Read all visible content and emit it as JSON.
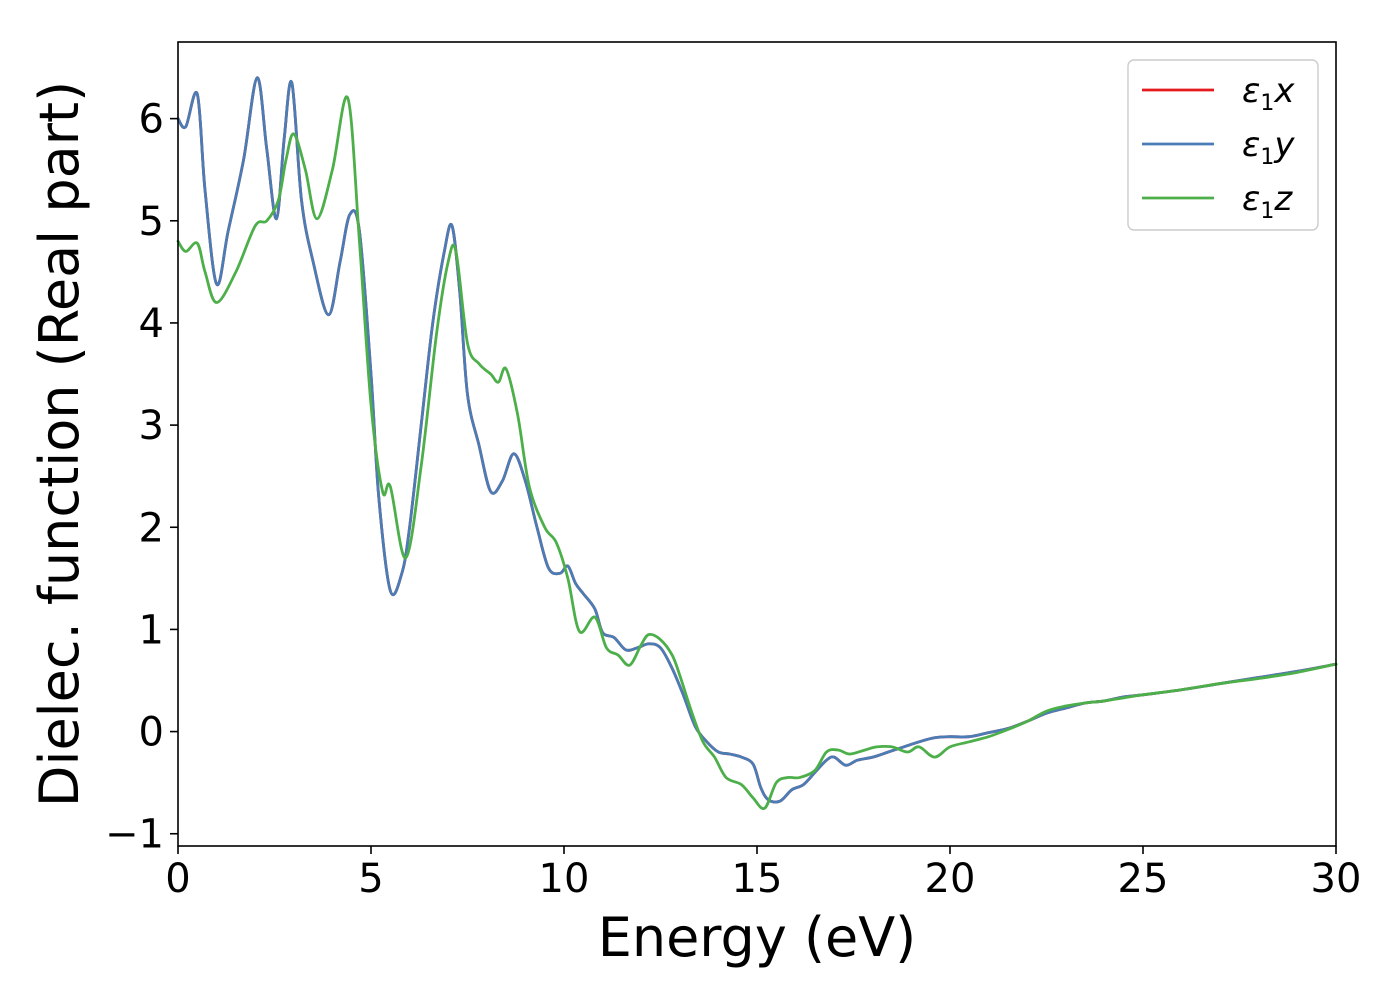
{
  "chart_data": {
    "type": "line",
    "title": "",
    "xlabel": "Energy (eV)",
    "ylabel": "Dielec. function (Real part)",
    "xlim": [
      0,
      30
    ],
    "ylim": [
      -1.12,
      6.75
    ],
    "xticks": [
      0,
      5,
      10,
      15,
      20,
      25,
      30
    ],
    "yticks": [
      -1,
      0,
      1,
      2,
      3,
      4,
      5,
      6
    ],
    "xtick_labels": [
      "0",
      "5",
      "10",
      "15",
      "20",
      "25",
      "30"
    ],
    "ytick_labels": [
      "−1",
      "0",
      "1",
      "2",
      "3",
      "4",
      "5",
      "6"
    ],
    "grid": false,
    "legend": {
      "position": "top-right",
      "entries": [
        {
          "symbol": "ε",
          "sub": "1",
          "comp": "x",
          "color": "#e41a1c"
        },
        {
          "symbol": "ε",
          "sub": "1",
          "comp": "y",
          "color": "#4a7db5"
        },
        {
          "symbol": "ε",
          "sub": "1",
          "comp": "z",
          "color": "#4daf4a"
        }
      ]
    },
    "series": [
      {
        "name": "ε1x",
        "color": "#e41a1c",
        "x": [
          0,
          0.2,
          0.5,
          0.7,
          1.0,
          1.3,
          1.7,
          2.05,
          2.3,
          2.55,
          2.75,
          2.95,
          3.2,
          3.5,
          3.9,
          4.2,
          4.45,
          4.7,
          5.0,
          5.2,
          5.5,
          5.8,
          6.0,
          6.3,
          6.6,
          6.9,
          7.1,
          7.3,
          7.5,
          7.8,
          8.1,
          8.4,
          8.7,
          9.0,
          9.3,
          9.6,
          9.9,
          10.1,
          10.3,
          10.5,
          10.8,
          11.0,
          11.3,
          11.6,
          11.9,
          12.2,
          12.5,
          12.8,
          13.1,
          13.4,
          13.7,
          14.0,
          14.3,
          14.6,
          14.9,
          15.1,
          15.3,
          15.6,
          15.9,
          16.2,
          16.5,
          16.8,
          17.0,
          17.3,
          17.6,
          18.0,
          18.4,
          18.8,
          19.2,
          19.6,
          20.0,
          20.5,
          21.0,
          21.5,
          22.0,
          22.5,
          23.0,
          23.5,
          24.0,
          24.5,
          25.0,
          26.0,
          27.0,
          28.0,
          29.0,
          30.0
        ],
        "y": [
          6.0,
          5.92,
          6.24,
          5.3,
          4.38,
          4.9,
          5.6,
          6.4,
          5.7,
          5.02,
          5.8,
          6.35,
          5.2,
          4.6,
          4.08,
          4.6,
          5.06,
          4.9,
          3.5,
          2.3,
          1.38,
          1.55,
          2.0,
          3.0,
          4.0,
          4.7,
          4.95,
          4.3,
          3.3,
          2.8,
          2.35,
          2.45,
          2.72,
          2.45,
          2.0,
          1.6,
          1.55,
          1.62,
          1.45,
          1.35,
          1.2,
          0.97,
          0.92,
          0.8,
          0.82,
          0.86,
          0.82,
          0.62,
          0.35,
          0.05,
          -0.1,
          -0.2,
          -0.22,
          -0.25,
          -0.32,
          -0.55,
          -0.67,
          -0.68,
          -0.57,
          -0.52,
          -0.4,
          -0.28,
          -0.25,
          -0.33,
          -0.28,
          -0.25,
          -0.2,
          -0.15,
          -0.1,
          -0.06,
          -0.05,
          -0.05,
          -0.01,
          0.03,
          0.1,
          0.18,
          0.23,
          0.28,
          0.3,
          0.34,
          0.36,
          0.41,
          0.47,
          0.53,
          0.59,
          0.66
        ]
      },
      {
        "name": "ε1y",
        "color": "#4a7db5",
        "x": [
          0,
          0.2,
          0.5,
          0.7,
          1.0,
          1.3,
          1.7,
          2.05,
          2.3,
          2.55,
          2.75,
          2.95,
          3.2,
          3.5,
          3.9,
          4.2,
          4.45,
          4.7,
          5.0,
          5.2,
          5.5,
          5.8,
          6.0,
          6.3,
          6.6,
          6.9,
          7.1,
          7.3,
          7.5,
          7.8,
          8.1,
          8.4,
          8.7,
          9.0,
          9.3,
          9.6,
          9.9,
          10.1,
          10.3,
          10.5,
          10.8,
          11.0,
          11.3,
          11.6,
          11.9,
          12.2,
          12.5,
          12.8,
          13.1,
          13.4,
          13.7,
          14.0,
          14.3,
          14.6,
          14.9,
          15.1,
          15.3,
          15.6,
          15.9,
          16.2,
          16.5,
          16.8,
          17.0,
          17.3,
          17.6,
          18.0,
          18.4,
          18.8,
          19.2,
          19.6,
          20.0,
          20.5,
          21.0,
          21.5,
          22.0,
          22.5,
          23.0,
          23.5,
          24.0,
          24.5,
          25.0,
          26.0,
          27.0,
          28.0,
          29.0,
          30.0
        ],
        "y": [
          6.0,
          5.92,
          6.24,
          5.3,
          4.38,
          4.9,
          5.6,
          6.4,
          5.7,
          5.02,
          5.8,
          6.35,
          5.2,
          4.6,
          4.08,
          4.6,
          5.06,
          4.9,
          3.5,
          2.3,
          1.38,
          1.55,
          2.0,
          3.0,
          4.0,
          4.7,
          4.95,
          4.3,
          3.3,
          2.8,
          2.35,
          2.45,
          2.72,
          2.45,
          2.0,
          1.6,
          1.55,
          1.62,
          1.45,
          1.35,
          1.2,
          0.97,
          0.92,
          0.8,
          0.82,
          0.86,
          0.82,
          0.62,
          0.35,
          0.05,
          -0.1,
          -0.2,
          -0.22,
          -0.25,
          -0.32,
          -0.55,
          -0.67,
          -0.68,
          -0.57,
          -0.52,
          -0.4,
          -0.28,
          -0.25,
          -0.33,
          -0.28,
          -0.25,
          -0.2,
          -0.15,
          -0.1,
          -0.06,
          -0.05,
          -0.05,
          -0.01,
          0.03,
          0.1,
          0.18,
          0.23,
          0.28,
          0.3,
          0.34,
          0.36,
          0.41,
          0.47,
          0.53,
          0.59,
          0.66
        ]
      },
      {
        "name": "ε1z",
        "color": "#4daf4a",
        "x": [
          0,
          0.2,
          0.5,
          0.7,
          1.0,
          1.5,
          2.0,
          2.3,
          2.6,
          2.8,
          3.0,
          3.3,
          3.6,
          4.0,
          4.4,
          4.7,
          5.0,
          5.3,
          5.5,
          5.9,
          6.3,
          6.7,
          7.0,
          7.2,
          7.5,
          7.8,
          8.1,
          8.3,
          8.5,
          8.8,
          9.1,
          9.5,
          9.8,
          10.1,
          10.4,
          10.8,
          11.1,
          11.4,
          11.7,
          12.0,
          12.2,
          12.5,
          12.8,
          13.0,
          13.3,
          13.6,
          13.9,
          14.2,
          14.6,
          14.9,
          15.2,
          15.5,
          15.8,
          16.1,
          16.5,
          16.8,
          17.1,
          17.4,
          17.8,
          18.1,
          18.5,
          18.9,
          19.2,
          19.6,
          20.0,
          20.5,
          21.0,
          21.5,
          22.0,
          22.5,
          23.0,
          23.5,
          24.0,
          24.5,
          25.0,
          26.0,
          27.0,
          28.0,
          29.0,
          30.0
        ],
        "y": [
          4.8,
          4.7,
          4.78,
          4.5,
          4.2,
          4.5,
          4.95,
          5.0,
          5.2,
          5.6,
          5.85,
          5.5,
          5.02,
          5.5,
          6.2,
          4.8,
          3.2,
          2.35,
          2.4,
          1.7,
          2.6,
          3.9,
          4.6,
          4.7,
          3.8,
          3.6,
          3.5,
          3.42,
          3.55,
          3.1,
          2.4,
          2.0,
          1.85,
          1.5,
          0.98,
          1.12,
          0.82,
          0.75,
          0.65,
          0.85,
          0.95,
          0.9,
          0.75,
          0.55,
          0.2,
          -0.1,
          -0.25,
          -0.45,
          -0.52,
          -0.65,
          -0.75,
          -0.5,
          -0.45,
          -0.45,
          -0.38,
          -0.2,
          -0.18,
          -0.22,
          -0.18,
          -0.15,
          -0.15,
          -0.2,
          -0.15,
          -0.25,
          -0.15,
          -0.1,
          -0.05,
          0.02,
          0.1,
          0.2,
          0.25,
          0.28,
          0.3,
          0.33,
          0.36,
          0.41,
          0.47,
          0.52,
          0.58,
          0.66
        ]
      }
    ]
  }
}
